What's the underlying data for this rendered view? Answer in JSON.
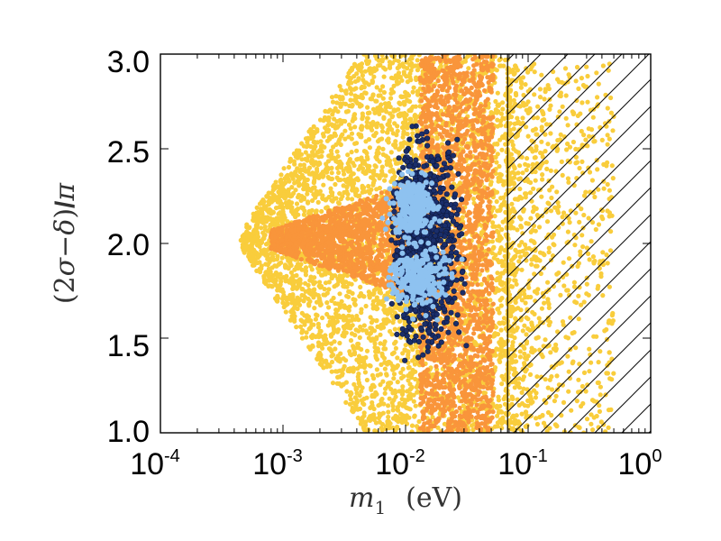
{
  "chart_data": {
    "type": "scatter",
    "title": "",
    "xlabel": "m_1  (eV)",
    "xlabel_parts": {
      "var": "m",
      "sub": "1",
      "unit": "(eV)"
    },
    "ylabel": "(2σ−δ)/π",
    "ylabel_parts": {
      "open": "(2",
      "sigma": "σ",
      "minus": "−",
      "delta": "δ",
      "close": ")",
      "slash": "/",
      "pi": "π"
    },
    "xscale": "log",
    "xlim": [
      0.0001,
      1.0
    ],
    "ylim": [
      1.0,
      3.0
    ],
    "x_ticks": [
      {
        "base": "10",
        "exp": "-4",
        "value": 0.0001
      },
      {
        "base": "10",
        "exp": "-3",
        "value": 0.001
      },
      {
        "base": "10",
        "exp": "-2",
        "value": 0.01
      },
      {
        "base": "10",
        "exp": "-1",
        "value": 0.1
      },
      {
        "base": "10",
        "exp": "0",
        "value": 1.0
      }
    ],
    "y_ticks": [
      {
        "label": "1.0",
        "value": 1.0
      },
      {
        "label": "1.5",
        "value": 1.5
      },
      {
        "label": "2.0",
        "value": 2.0
      },
      {
        "label": "2.5",
        "value": 2.5
      },
      {
        "label": "3.0",
        "value": 3.0
      }
    ],
    "excluded_region": {
      "description": "hatched",
      "x_from": 0.068,
      "x_to": 1.0
    },
    "series": [
      {
        "name": "yellow",
        "color": "#F9CD3C",
        "point_clouds": [
          {
            "x_range": [
              0.0007,
              0.012
            ],
            "y_range": [
              1.0,
              3.0
            ],
            "shape": "wedge",
            "apex_x": 0.00045,
            "apex_y": 2.02
          },
          {
            "x_range": [
              0.012,
              0.068
            ],
            "y_range": [
              1.0,
              3.0
            ],
            "shape": "band"
          },
          {
            "x_range": [
              0.068,
              0.5
            ],
            "y_range": [
              1.0,
              2.95
            ],
            "shape": "sparse"
          }
        ]
      },
      {
        "name": "orange",
        "color": "#F9953B",
        "point_clouds": [
          {
            "x_range": [
              0.0008,
              0.015
            ],
            "y_range": [
              1.7,
              2.3
            ],
            "shape": "wedge",
            "apex_x": 0.0008,
            "apex_y": 2.02
          },
          {
            "x_range": [
              0.013,
              0.052
            ],
            "y_range": [
              1.0,
              3.0
            ],
            "shape": "band"
          }
        ]
      },
      {
        "name": "dark-blue",
        "color": "#1A2E6B",
        "point_clouds": [
          {
            "x_range": [
              0.0075,
              0.032
            ],
            "y_range": [
              1.38,
              2.62
            ],
            "shape": "blob"
          }
        ]
      },
      {
        "name": "light-blue",
        "color": "#8EC2F0",
        "point_clouds": [
          {
            "center": [
              0.0115,
              2.2
            ],
            "spread": [
              0.08,
              0.07
            ],
            "shape": "cluster"
          },
          {
            "center": [
              0.0125,
              1.82
            ],
            "spread": [
              0.11,
              0.08
            ],
            "shape": "cluster"
          }
        ]
      }
    ]
  }
}
